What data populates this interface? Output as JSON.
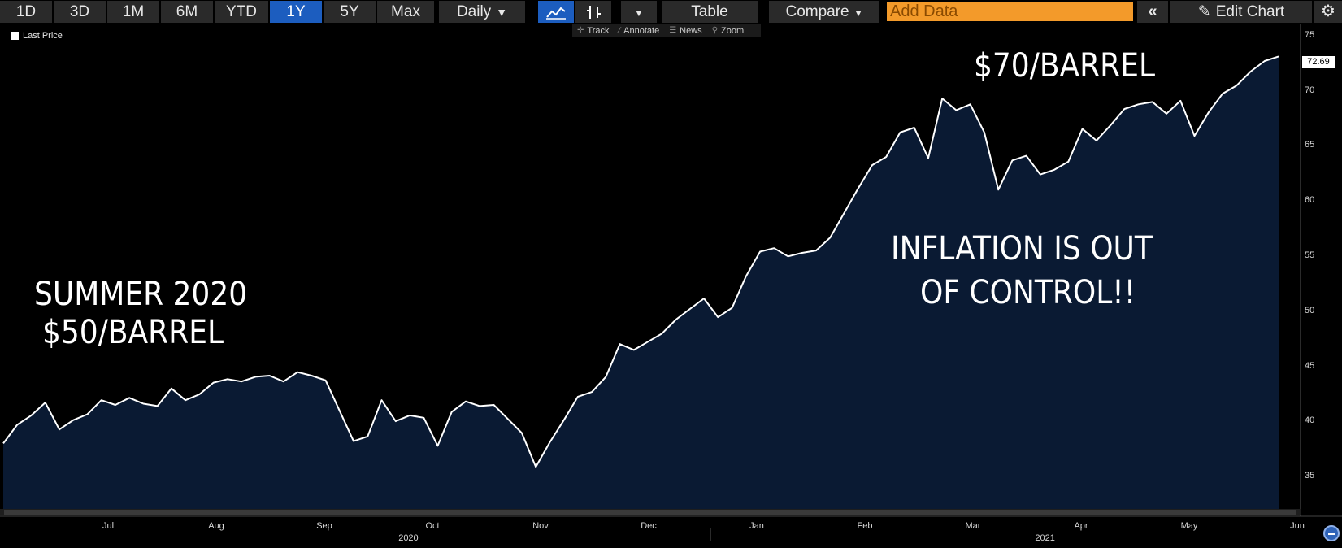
{
  "toolbar": {
    "ranges": [
      "1D",
      "3D",
      "1M",
      "6M",
      "YTD",
      "1Y",
      "5Y",
      "Max"
    ],
    "active_range": "1Y",
    "frequency": "Daily",
    "table_label": "Table",
    "compare_label": "Compare",
    "add_data_placeholder": "Add Data",
    "edit_chart_label": "Edit Chart"
  },
  "chart_tools": [
    "Track",
    "Annotate",
    "News",
    "Zoom"
  ],
  "legend": {
    "label": "Last Price"
  },
  "annotations": {
    "left_line1": "SUMMER 2020",
    "left_line2": "$50/BARREL",
    "top_right": "$70/BARREL",
    "middle_line1": "INFLATION IS OUT",
    "middle_line2": "OF CONTROL!!"
  },
  "colors": {
    "background": "#000000",
    "area_fill": "#0a1a33",
    "line": "#ffffff",
    "active_button": "#1c5dbf",
    "add_data": "#f39a2a"
  },
  "chart_data": {
    "type": "area",
    "series": [
      {
        "name": "Last Price"
      }
    ],
    "last_value": "72.69",
    "y_ticks": [
      "75",
      "70",
      "65",
      "60",
      "55",
      "50",
      "45",
      "40",
      "35"
    ],
    "ylim": [
      34,
      75.5
    ],
    "x_ticks": [
      "Jul",
      "Aug",
      "Sep",
      "Oct",
      "Nov",
      "Dec",
      "Jan",
      "Feb",
      "Mar",
      "Apr",
      "May",
      "Jun"
    ],
    "x_tick_weeks": [
      4,
      13,
      22,
      31,
      40,
      49,
      58,
      67,
      76,
      85,
      94,
      103
    ],
    "years": [
      "2020",
      "2021"
    ],
    "year_weeks": [
      29,
      82
    ],
    "x_range_weeks": [
      -5,
      103
    ],
    "weekly_values": [
      39.6,
      41.2,
      42.0,
      43.1,
      40.8,
      41.6,
      42.1,
      43.3,
      42.9,
      43.5,
      43.0,
      42.8,
      44.3,
      43.3,
      43.8,
      44.8,
      45.1,
      44.9,
      45.3,
      45.4,
      44.9,
      45.7,
      45.4,
      45.0,
      42.4,
      39.8,
      40.2,
      43.3,
      41.5,
      42.0,
      41.8,
      39.4,
      42.3,
      43.2,
      42.8,
      42.9,
      41.7,
      40.5,
      37.6,
      39.7,
      41.6,
      43.6,
      44.0,
      45.3,
      48.1,
      47.6,
      48.3,
      49.0,
      50.2,
      51.1,
      52.0,
      50.4,
      51.2,
      53.9,
      56.0,
      56.3,
      55.6,
      55.9,
      56.1,
      57.2,
      59.3,
      61.4,
      63.4,
      64.1,
      66.2,
      66.6,
      64.0,
      69.1,
      68.1,
      68.6,
      66.2,
      61.3,
      63.8,
      64.2,
      62.6,
      63.0,
      63.7,
      66.5,
      65.5,
      66.8,
      68.2,
      68.6,
      68.8,
      67.8,
      68.9,
      65.9,
      67.9,
      69.5,
      70.2,
      71.4,
      72.3,
      72.69
    ]
  }
}
